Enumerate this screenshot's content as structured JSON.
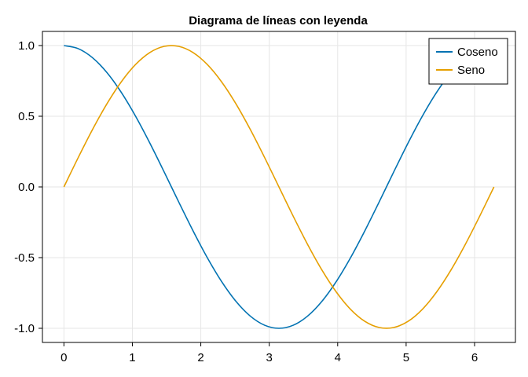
{
  "chart_data": {
    "type": "line",
    "title": "Diagrama de líneas con leyenda",
    "xlabel": "",
    "ylabel": "",
    "xlim": [
      -0.314,
      6.597
    ],
    "ylim": [
      -1.1,
      1.1
    ],
    "x_ticks": [
      0,
      1,
      2,
      3,
      4,
      5,
      6
    ],
    "x_tick_labels": [
      "0",
      "1",
      "2",
      "3",
      "4",
      "5",
      "6"
    ],
    "y_ticks": [
      1.0,
      0.5,
      0.0,
      -0.5,
      -1.0
    ],
    "y_tick_labels": [
      "1.0",
      "0.5",
      "0.0",
      "-0.5",
      "-1.0"
    ],
    "grid": true,
    "legend_position": "top-right",
    "x": [
      0.0,
      0.2094,
      0.4189,
      0.6283,
      0.8378,
      1.0472,
      1.2566,
      1.4661,
      1.6755,
      1.885,
      2.0944,
      2.3038,
      2.5133,
      2.7227,
      2.9322,
      3.1416,
      3.351,
      3.5605,
      3.7699,
      3.9794,
      4.1888,
      4.3982,
      4.6077,
      4.8171,
      5.0265,
      5.236,
      5.4454,
      5.6549,
      5.8643,
      6.0737,
      6.2832
    ],
    "series": [
      {
        "name": "Coseno",
        "color": "#0072b2",
        "values": [
          1.0,
          0.9781,
          0.9135,
          0.809,
          0.6691,
          0.5,
          0.309,
          0.1045,
          -0.1045,
          -0.309,
          -0.5,
          -0.6691,
          -0.809,
          -0.9135,
          -0.9781,
          -1.0,
          -0.9781,
          -0.9135,
          -0.809,
          -0.6691,
          -0.5,
          -0.309,
          -0.1045,
          0.1045,
          0.309,
          0.5,
          0.6691,
          0.809,
          0.9135,
          0.9781,
          1.0
        ]
      },
      {
        "name": "Seno",
        "color": "#e69f00",
        "values": [
          0.0,
          0.2079,
          0.4067,
          0.5878,
          0.7431,
          0.866,
          0.9511,
          0.9945,
          0.9945,
          0.9511,
          0.866,
          0.7431,
          0.5878,
          0.4067,
          0.2079,
          0.0,
          -0.2079,
          -0.4067,
          -0.5878,
          -0.7431,
          -0.866,
          -0.9511,
          -0.9945,
          -0.9945,
          -0.9511,
          -0.866,
          -0.7431,
          -0.5878,
          -0.4067,
          -0.2079,
          0.0
        ]
      }
    ]
  }
}
